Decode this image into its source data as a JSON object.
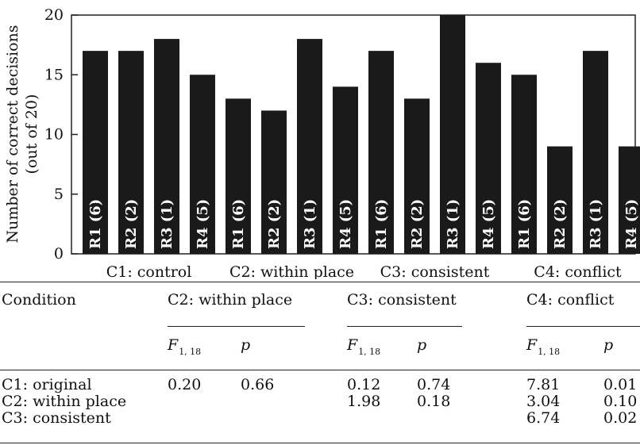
{
  "chart_data": {
    "type": "bar",
    "ylabel_line1": "Number of correct decisions",
    "ylabel_line2": "(out of 20)",
    "ylim": [
      0,
      20
    ],
    "yticks": [
      0,
      5,
      10,
      15,
      20
    ],
    "groups": [
      {
        "name": "C1: control",
        "bars": [
          {
            "label": "R1 (6)",
            "value": 17
          },
          {
            "label": "R2 (2)",
            "value": 17
          },
          {
            "label": "R3 (1)",
            "value": 18
          },
          {
            "label": "R4 (5)",
            "value": 15
          }
        ]
      },
      {
        "name": "C2: within place",
        "bars": [
          {
            "label": "R1 (6)",
            "value": 13
          },
          {
            "label": "R2 (2)",
            "value": 12
          },
          {
            "label": "R3 (1)",
            "value": 18
          },
          {
            "label": "R4 (5)",
            "value": 14
          }
        ]
      },
      {
        "name": "C3: consistent",
        "bars": [
          {
            "label": "R1 (6)",
            "value": 17
          },
          {
            "label": "R2 (2)",
            "value": 13
          },
          {
            "label": "R3 (1)",
            "value": 20
          },
          {
            "label": "R4 (5)",
            "value": 16
          }
        ]
      },
      {
        "name": "C4: conflict",
        "bars": [
          {
            "label": "R1 (6)",
            "value": 15
          },
          {
            "label": "R2 (2)",
            "value": 9
          },
          {
            "label": "R3 (1)",
            "value": 17
          },
          {
            "label": "R4 (5)",
            "value": 9
          }
        ]
      }
    ],
    "bar_color": "#1a1a1a",
    "bar_label_color": "#ffffff",
    "grid": false
  },
  "stats_table": {
    "header_label": "Condition",
    "group_headers": [
      "C2: within place",
      "C3: consistent",
      "C4: conflict"
    ],
    "f_symbol": "F",
    "f_subscript": "1, 18",
    "p_symbol": "p",
    "rows": [
      {
        "label": "C1: original",
        "values": [
          "0.20",
          "0.66",
          "0.12",
          "0.74",
          "7.81",
          "0.01"
        ]
      },
      {
        "label": "C2: within place",
        "values": [
          "",
          "",
          "1.98",
          "0.18",
          "3.04",
          "0.10"
        ]
      },
      {
        "label": "C3: consistent",
        "values": [
          "",
          "",
          "",
          "",
          "6.74",
          "0.02"
        ]
      }
    ]
  }
}
